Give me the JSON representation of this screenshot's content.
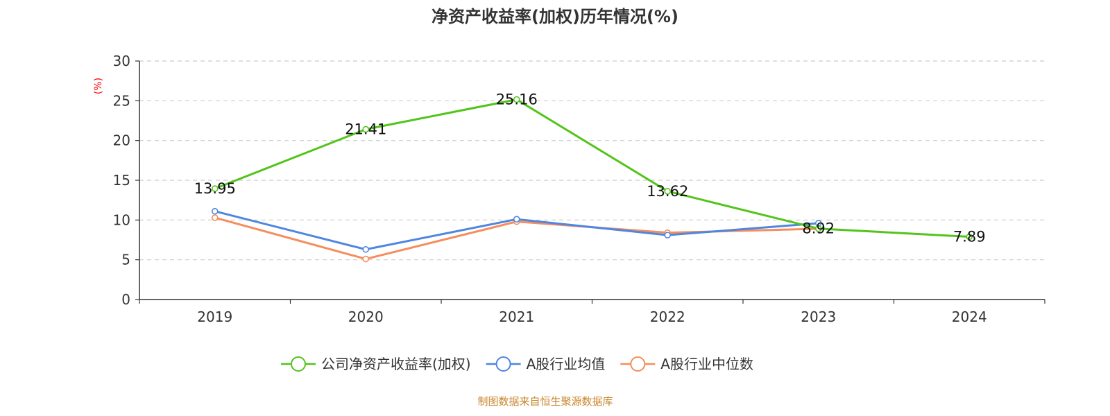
{
  "chart_data": {
    "type": "line",
    "title": "净资产收益率(加权)历年情况(%)",
    "ylabel": "(%)",
    "xlabel": "",
    "categories": [
      "2019",
      "2020",
      "2021",
      "2022",
      "2023",
      "2024"
    ],
    "ylim": [
      0,
      30
    ],
    "yticks": [
      0,
      5,
      10,
      15,
      20,
      25,
      30
    ],
    "grid": true,
    "legend_position": "bottom-center",
    "series": [
      {
        "name": "公司净资产收益率(加权)",
        "color": "#52c41a",
        "values": [
          13.95,
          21.41,
          25.16,
          13.62,
          8.92,
          7.89
        ],
        "labels": [
          "13.95",
          "21.41",
          "25.16",
          "13.62",
          "8.92",
          "7.89"
        ]
      },
      {
        "name": "A股行业均值",
        "color": "#4e86e0",
        "values": [
          11.1,
          6.3,
          10.1,
          8.1,
          9.6,
          null
        ]
      },
      {
        "name": "A股行业中位数",
        "color": "#f58d5d",
        "values": [
          10.3,
          5.1,
          9.8,
          8.4,
          8.9,
          null
        ]
      }
    ]
  },
  "source_note": "制图数据来自恒生聚源数据库",
  "colors": {
    "axis": "#333333",
    "grid": "#cccccc",
    "ylabel": "#ff0000",
    "source": "#c8862c"
  }
}
